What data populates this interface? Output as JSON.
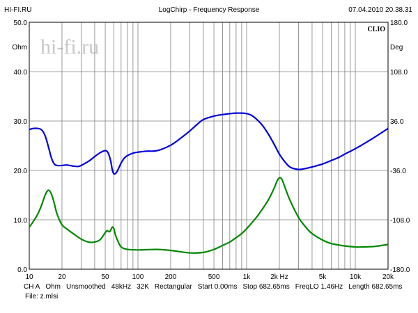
{
  "header": {
    "left": "HI-FI.RU",
    "center": "LogChirp - Frequency Response",
    "right": "07.04.2010 20.38.31"
  },
  "watermark": "hi-fi.ru",
  "badge": "CLIO",
  "chart_data": {
    "type": "line",
    "title": "LogChirp - Frequency Response",
    "x_scale": "log",
    "xlim": [
      10,
      20000
    ],
    "x_ticks": [
      {
        "v": 10,
        "label": "10"
      },
      {
        "v": 20,
        "label": "20"
      },
      {
        "v": 50,
        "label": "50"
      },
      {
        "v": 100,
        "label": "100"
      },
      {
        "v": 200,
        "label": "200"
      },
      {
        "v": 500,
        "label": "500"
      },
      {
        "v": 1000,
        "label": "1k"
      },
      {
        "v": 2000,
        "label": "2k Hz"
      },
      {
        "v": 5000,
        "label": "5k"
      },
      {
        "v": 10000,
        "label": "10k"
      },
      {
        "v": 20000,
        "label": "20k"
      }
    ],
    "y_left": {
      "unit": "Ohm",
      "lim": [
        0,
        50
      ],
      "ticks": [
        "0.0",
        "10.0",
        "20.0",
        "30.0",
        "40.0",
        "50.0"
      ]
    },
    "y_right": {
      "unit": "Deg",
      "lim": [
        -180,
        180
      ],
      "ticks": [
        "-180.0",
        "-108.0",
        "-36.0",
        "36.0",
        "108.0",
        "180.0"
      ]
    },
    "grid": true,
    "series": [
      {
        "color": "#0000dd",
        "x": [
          10,
          11,
          12,
          13,
          14,
          15,
          16,
          17,
          18,
          20,
          22,
          25,
          28,
          30,
          33,
          36,
          40,
          45,
          50,
          53,
          56,
          58,
          60,
          63,
          66,
          70,
          75,
          80,
          90,
          100,
          120,
          150,
          200,
          250,
          300,
          350,
          400,
          500,
          600,
          700,
          800,
          900,
          1000,
          1100,
          1200,
          1400,
          1600,
          1800,
          2000,
          2200,
          2500,
          3000,
          3500,
          4000,
          5000,
          6000,
          7000,
          8000,
          10000,
          12000,
          15000,
          20000
        ],
        "y": [
          28.3,
          28.5,
          28.5,
          28.2,
          27.0,
          24.8,
          22.5,
          21.3,
          21.0,
          21.0,
          21.1,
          20.9,
          20.8,
          21.0,
          21.5,
          22.0,
          22.8,
          23.6,
          24.0,
          23.6,
          22.0,
          20.2,
          19.3,
          19.5,
          20.3,
          21.5,
          22.5,
          23.0,
          23.5,
          23.7,
          23.9,
          24.0,
          25.1,
          26.6,
          28.0,
          29.3,
          30.3,
          31.0,
          31.3,
          31.5,
          31.6,
          31.6,
          31.5,
          31.2,
          30.6,
          29.1,
          27.2,
          25.2,
          23.3,
          22.0,
          20.7,
          20.2,
          20.4,
          20.7,
          21.3,
          22.0,
          22.6,
          23.3,
          24.4,
          25.4,
          26.7,
          28.5
        ]
      },
      {
        "color": "#008800",
        "x": [
          10,
          11,
          12,
          13,
          14,
          15,
          16,
          17,
          18,
          20,
          22,
          25,
          30,
          35,
          40,
          45,
          50,
          52,
          55,
          58,
          60,
          62,
          65,
          70,
          80,
          100,
          150,
          200,
          300,
          400,
          500,
          600,
          700,
          800,
          900,
          1000,
          1200,
          1400,
          1600,
          1800,
          1900,
          2000,
          2100,
          2200,
          2500,
          3000,
          3500,
          4000,
          5000,
          6000,
          8000,
          10000,
          12000,
          15000,
          20000
        ],
        "y": [
          8.5,
          9.8,
          11.2,
          13.0,
          15.0,
          16.0,
          15.2,
          13.3,
          11.2,
          9.0,
          8.2,
          7.3,
          6.1,
          5.5,
          5.5,
          6.0,
          7.4,
          7.8,
          7.6,
          8.5,
          8.2,
          7.0,
          5.8,
          4.5,
          4.0,
          3.9,
          4.0,
          3.8,
          3.3,
          3.4,
          4.0,
          4.8,
          5.5,
          6.4,
          7.2,
          8.2,
          10.2,
          12.2,
          14.2,
          16.5,
          17.8,
          18.5,
          18.3,
          17.2,
          14.0,
          10.5,
          8.5,
          7.2,
          5.9,
          5.2,
          4.7,
          4.5,
          4.5,
          4.6,
          5.0
        ]
      }
    ]
  },
  "footer": {
    "channel": "CH A",
    "unit": "Ohm",
    "smoothing": "Unsmoothed",
    "rate": "48kHz",
    "size": "32K",
    "window": "Rectangular",
    "start": "Start 0.00ms",
    "stop": "Stop 682.65ms",
    "freqlo": "FreqLO 1.46Hz",
    "length": "Length 682.65ms",
    "file": "File: z.mlsi"
  }
}
